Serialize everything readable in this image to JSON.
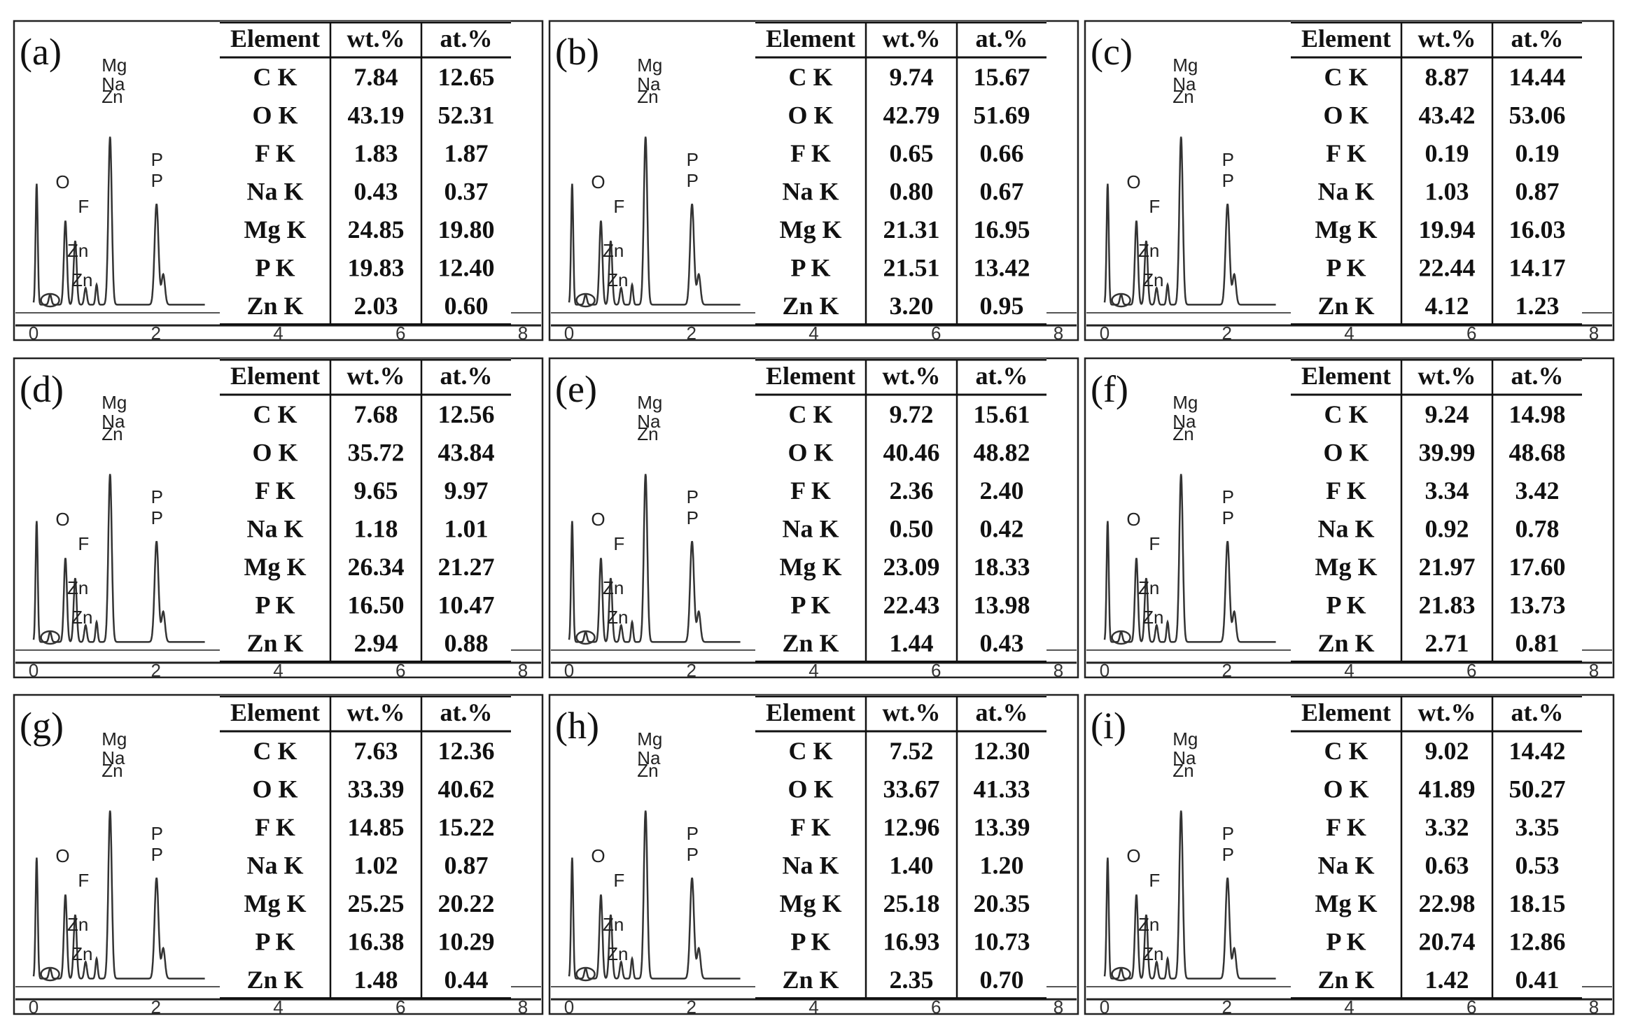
{
  "figure": {
    "x_axis_ticks": [
      "0",
      "2",
      "4",
      "6",
      "8"
    ],
    "table_headers": [
      "Element",
      "wt.%",
      "at.%"
    ]
  },
  "chart_data": [
    {
      "type": "line",
      "panel_label": "(a)",
      "xlim": [
        0,
        8
      ],
      "xlabel": "",
      "ylabel": "",
      "peak_labels": [
        {
          "text": "O",
          "x": 0.52
        },
        {
          "text": "F",
          "x": 0.68
        },
        {
          "text": "Zn",
          "x": 1.0
        },
        {
          "text": "Zn",
          "x": 1.0
        },
        {
          "text": "Mg",
          "x": 1.25
        },
        {
          "text": "Zn",
          "x": 1.0
        },
        {
          "text": "Na",
          "x": 1.04
        },
        {
          "text": "P",
          "x": 2.01
        },
        {
          "text": "P",
          "x": 2.01
        }
      ],
      "table": {
        "columns": [
          "Element",
          "wt.%",
          "at.%"
        ],
        "rows": [
          [
            "C K",
            "7.84",
            "12.65"
          ],
          [
            "O K",
            "43.19",
            "52.31"
          ],
          [
            "F K",
            "1.83",
            "1.87"
          ],
          [
            "Na K",
            "0.43",
            "0.37"
          ],
          [
            "Mg K",
            "24.85",
            "19.80"
          ],
          [
            "P K",
            "19.83",
            "12.40"
          ],
          [
            "Zn K",
            "2.03",
            "0.60"
          ]
        ]
      }
    },
    {
      "type": "line",
      "panel_label": "(b)",
      "xlim": [
        0,
        8
      ],
      "xlabel": "",
      "ylabel": "",
      "peak_labels": [
        {
          "text": "O",
          "x": 0.52
        },
        {
          "text": "F",
          "x": 0.68
        },
        {
          "text": "Zn",
          "x": 1.0
        },
        {
          "text": "Zn",
          "x": 1.0
        },
        {
          "text": "Mg",
          "x": 1.25
        },
        {
          "text": "Zn",
          "x": 1.0
        },
        {
          "text": "Na",
          "x": 1.04
        },
        {
          "text": "P",
          "x": 2.01
        },
        {
          "text": "P",
          "x": 2.01
        }
      ],
      "table": {
        "columns": [
          "Element",
          "wt.%",
          "at.%"
        ],
        "rows": [
          [
            "C K",
            "9.74",
            "15.67"
          ],
          [
            "O K",
            "42.79",
            "51.69"
          ],
          [
            "F K",
            "0.65",
            "0.66"
          ],
          [
            "Na K",
            "0.80",
            "0.67"
          ],
          [
            "Mg K",
            "21.31",
            "16.95"
          ],
          [
            "P K",
            "21.51",
            "13.42"
          ],
          [
            "Zn K",
            "3.20",
            "0.95"
          ]
        ]
      }
    },
    {
      "type": "line",
      "panel_label": "(c)",
      "xlim": [
        0,
        8
      ],
      "xlabel": "",
      "ylabel": "",
      "peak_labels": [
        {
          "text": "O",
          "x": 0.52
        },
        {
          "text": "F",
          "x": 0.68
        },
        {
          "text": "Zn",
          "x": 1.0
        },
        {
          "text": "Zn",
          "x": 1.0
        },
        {
          "text": "Mg",
          "x": 1.25
        },
        {
          "text": "Na",
          "x": 1.04
        },
        {
          "text": "Zn",
          "x": 1.0
        },
        {
          "text": "P",
          "x": 2.01
        },
        {
          "text": "P",
          "x": 2.01
        }
      ],
      "table": {
        "columns": [
          "Element",
          "wt.%",
          "at.%"
        ],
        "rows": [
          [
            "C K",
            "8.87",
            "14.44"
          ],
          [
            "O K",
            "43.42",
            "53.06"
          ],
          [
            "F K",
            "0.19",
            "0.19"
          ],
          [
            "Na K",
            "1.03",
            "0.87"
          ],
          [
            "Mg K",
            "19.94",
            "16.03"
          ],
          [
            "P K",
            "22.44",
            "14.17"
          ],
          [
            "Zn K",
            "4.12",
            "1.23"
          ]
        ]
      }
    },
    {
      "type": "line",
      "panel_label": "(d)",
      "xlim": [
        0,
        8
      ],
      "xlabel": "",
      "ylabel": "",
      "peak_labels": [
        {
          "text": "O",
          "x": 0.52
        },
        {
          "text": "F",
          "x": 0.68
        },
        {
          "text": "Zn",
          "x": 1.0
        },
        {
          "text": "Zn",
          "x": 1.0
        },
        {
          "text": "Mg",
          "x": 1.25
        },
        {
          "text": "Na",
          "x": 1.04
        },
        {
          "text": "Zn",
          "x": 1.0
        },
        {
          "text": "P",
          "x": 2.01
        },
        {
          "text": "P",
          "x": 2.01
        }
      ],
      "table": {
        "columns": [
          "Element",
          "wt.%",
          "at.%"
        ],
        "rows": [
          [
            "C K",
            "7.68",
            "12.56"
          ],
          [
            "O K",
            "35.72",
            "43.84"
          ],
          [
            "F K",
            "9.65",
            "9.97"
          ],
          [
            "Na K",
            "1.18",
            "1.01"
          ],
          [
            "Mg K",
            "26.34",
            "21.27"
          ],
          [
            "P K",
            "16.50",
            "10.47"
          ],
          [
            "Zn K",
            "2.94",
            "0.88"
          ]
        ]
      }
    },
    {
      "type": "line",
      "panel_label": "(e)",
      "xlim": [
        0,
        8
      ],
      "xlabel": "",
      "ylabel": "",
      "peak_labels": [
        {
          "text": "O",
          "x": 0.52
        },
        {
          "text": "F",
          "x": 0.68
        },
        {
          "text": "Zn",
          "x": 1.0
        },
        {
          "text": "Zn",
          "x": 1.0
        },
        {
          "text": "Mg",
          "x": 1.25
        },
        {
          "text": "Zn",
          "x": 1.0
        },
        {
          "text": "Na",
          "x": 1.04
        },
        {
          "text": "P",
          "x": 2.01
        },
        {
          "text": "P",
          "x": 2.01
        }
      ],
      "table": {
        "columns": [
          "Element",
          "wt.%",
          "at.%"
        ],
        "rows": [
          [
            "C K",
            "9.72",
            "15.61"
          ],
          [
            "O K",
            "40.46",
            "48.82"
          ],
          [
            "F K",
            "2.36",
            "2.40"
          ],
          [
            "Na K",
            "0.50",
            "0.42"
          ],
          [
            "Mg K",
            "23.09",
            "18.33"
          ],
          [
            "P K",
            "22.43",
            "13.98"
          ],
          [
            "Zn K",
            "1.44",
            "0.43"
          ]
        ]
      }
    },
    {
      "type": "line",
      "panel_label": "(f)",
      "xlim": [
        0,
        8
      ],
      "xlabel": "",
      "ylabel": "",
      "peak_labels": [
        {
          "text": "O",
          "x": 0.52
        },
        {
          "text": "F",
          "x": 0.68
        },
        {
          "text": "Zn",
          "x": 1.0
        },
        {
          "text": "Zn",
          "x": 1.0
        },
        {
          "text": "Mg",
          "x": 1.25
        },
        {
          "text": "Na",
          "x": 1.04
        },
        {
          "text": "Zn",
          "x": 1.0
        },
        {
          "text": "P",
          "x": 2.01
        },
        {
          "text": "P",
          "x": 2.01
        }
      ],
      "table": {
        "columns": [
          "Element",
          "wt.%",
          "at.%"
        ],
        "rows": [
          [
            "C K",
            "9.24",
            "14.98"
          ],
          [
            "O K",
            "39.99",
            "48.68"
          ],
          [
            "F K",
            "3.34",
            "3.42"
          ],
          [
            "Na K",
            "0.92",
            "0.78"
          ],
          [
            "Mg K",
            "21.97",
            "17.60"
          ],
          [
            "P K",
            "21.83",
            "13.73"
          ],
          [
            "Zn K",
            "2.71",
            "0.81"
          ]
        ]
      }
    },
    {
      "type": "line",
      "panel_label": "(g)",
      "xlim": [
        0,
        8
      ],
      "xlabel": "",
      "ylabel": "",
      "peak_labels": [
        {
          "text": "O",
          "x": 0.52
        },
        {
          "text": "F",
          "x": 0.68
        },
        {
          "text": "Zn",
          "x": 1.0
        },
        {
          "text": "Zn",
          "x": 1.0
        },
        {
          "text": "Mg",
          "x": 1.25
        },
        {
          "text": "Na",
          "x": 1.04
        },
        {
          "text": "Zn",
          "x": 1.0
        },
        {
          "text": "P",
          "x": 2.01
        },
        {
          "text": "P",
          "x": 2.01
        }
      ],
      "table": {
        "columns": [
          "Element",
          "wt.%",
          "at.%"
        ],
        "rows": [
          [
            "C K",
            "7.63",
            "12.36"
          ],
          [
            "O K",
            "33.39",
            "40.62"
          ],
          [
            "F K",
            "14.85",
            "15.22"
          ],
          [
            "Na K",
            "1.02",
            "0.87"
          ],
          [
            "Mg K",
            "25.25",
            "20.22"
          ],
          [
            "P K",
            "16.38",
            "10.29"
          ],
          [
            "Zn K",
            "1.48",
            "0.44"
          ]
        ]
      }
    },
    {
      "type": "line",
      "panel_label": "(h)",
      "xlim": [
        0,
        8
      ],
      "xlabel": "",
      "ylabel": "",
      "peak_labels": [
        {
          "text": "O",
          "x": 0.52
        },
        {
          "text": "F",
          "x": 0.68
        },
        {
          "text": "Zn",
          "x": 1.0
        },
        {
          "text": "Zn",
          "x": 1.0
        },
        {
          "text": "Mg",
          "x": 1.25
        },
        {
          "text": "Na",
          "x": 1.04
        },
        {
          "text": "Zn",
          "x": 1.0
        },
        {
          "text": "P",
          "x": 2.01
        },
        {
          "text": "P",
          "x": 2.01
        }
      ],
      "table": {
        "columns": [
          "Element",
          "wt.%",
          "at.%"
        ],
        "rows": [
          [
            "C K",
            "7.52",
            "12.30"
          ],
          [
            "O K",
            "33.67",
            "41.33"
          ],
          [
            "F K",
            "12.96",
            "13.39"
          ],
          [
            "Na K",
            "1.40",
            "1.20"
          ],
          [
            "Mg K",
            "25.18",
            "20.35"
          ],
          [
            "P K",
            "16.93",
            "10.73"
          ],
          [
            "Zn K",
            "2.35",
            "0.70"
          ]
        ]
      }
    },
    {
      "type": "line",
      "panel_label": "(i)",
      "xlim": [
        0,
        8
      ],
      "xlabel": "",
      "ylabel": "",
      "peak_labels": [
        {
          "text": "O",
          "x": 0.52
        },
        {
          "text": "F",
          "x": 0.68
        },
        {
          "text": "Zn",
          "x": 1.0
        },
        {
          "text": "Zn",
          "x": 1.0
        },
        {
          "text": "Mg",
          "x": 1.25
        },
        {
          "text": "Na",
          "x": 1.04
        },
        {
          "text": "Zn",
          "x": 1.0
        },
        {
          "text": "P",
          "x": 2.01
        },
        {
          "text": "P",
          "x": 2.01
        }
      ],
      "table": {
        "columns": [
          "Element",
          "wt.%",
          "at.%"
        ],
        "rows": [
          [
            "C K",
            "9.02",
            "14.42"
          ],
          [
            "O K",
            "41.89",
            "50.27"
          ],
          [
            "F K",
            "3.32",
            "3.35"
          ],
          [
            "Na K",
            "0.63",
            "0.53"
          ],
          [
            "Mg K",
            "22.98",
            "18.15"
          ],
          [
            "P K",
            "20.74",
            "12.86"
          ],
          [
            "Zn K",
            "1.42",
            "0.41"
          ]
        ]
      }
    }
  ]
}
